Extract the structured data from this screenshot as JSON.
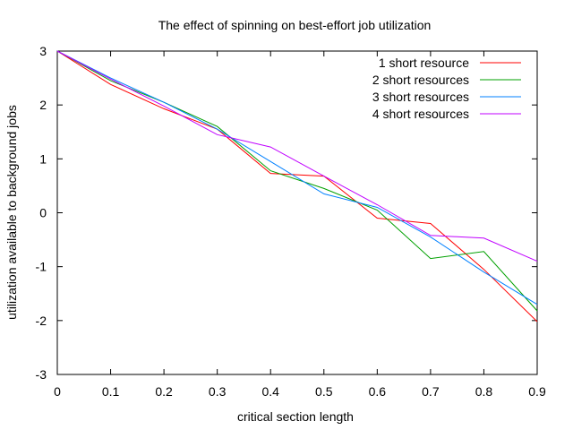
{
  "chart_data": {
    "type": "line",
    "title": "The effect of spinning on best-effort job utilization",
    "xlabel": "critical section length",
    "ylabel": "utilization available to background jobs",
    "xlim": [
      0,
      0.9
    ],
    "ylim": [
      -3,
      3
    ],
    "xticks": [
      0,
      0.1,
      0.2,
      0.3,
      0.4,
      0.5,
      0.6,
      0.7,
      0.8,
      0.9
    ],
    "yticks": [
      -3,
      -2,
      -1,
      0,
      1,
      2,
      3
    ],
    "xtick_labels": [
      "0",
      "0.1",
      "0.2",
      "0.3",
      "0.4",
      "0.5",
      "0.6",
      "0.7",
      "0.8",
      "0.9"
    ],
    "ytick_labels": [
      "-3",
      "-2",
      "-1",
      "0",
      "1",
      "2",
      "3"
    ],
    "grid": false,
    "legend_position": "top-right",
    "x": [
      0,
      0.1,
      0.2,
      0.3,
      0.4,
      0.5,
      0.6,
      0.7,
      0.8,
      0.9
    ],
    "series": [
      {
        "name": "1 short resource",
        "color": "#ff0000",
        "values": [
          3.0,
          2.38,
          1.93,
          1.55,
          0.73,
          0.68,
          -0.1,
          -0.2,
          -1.05,
          -2.02
        ]
      },
      {
        "name": "2 short resources",
        "color": "#00a000",
        "values": [
          3.0,
          2.45,
          2.05,
          1.6,
          0.78,
          0.45,
          0.05,
          -0.85,
          -0.72,
          -1.82
        ]
      },
      {
        "name": "3 short resources",
        "color": "#0080ff",
        "values": [
          3.0,
          2.5,
          2.05,
          1.55,
          0.95,
          0.35,
          0.1,
          -0.45,
          -1.1,
          -1.7
        ]
      },
      {
        "name": "4 short resources",
        "color": "#c000ff",
        "values": [
          3.0,
          2.48,
          1.98,
          1.45,
          1.22,
          0.68,
          0.15,
          -0.42,
          -0.47,
          -0.9
        ]
      }
    ]
  }
}
